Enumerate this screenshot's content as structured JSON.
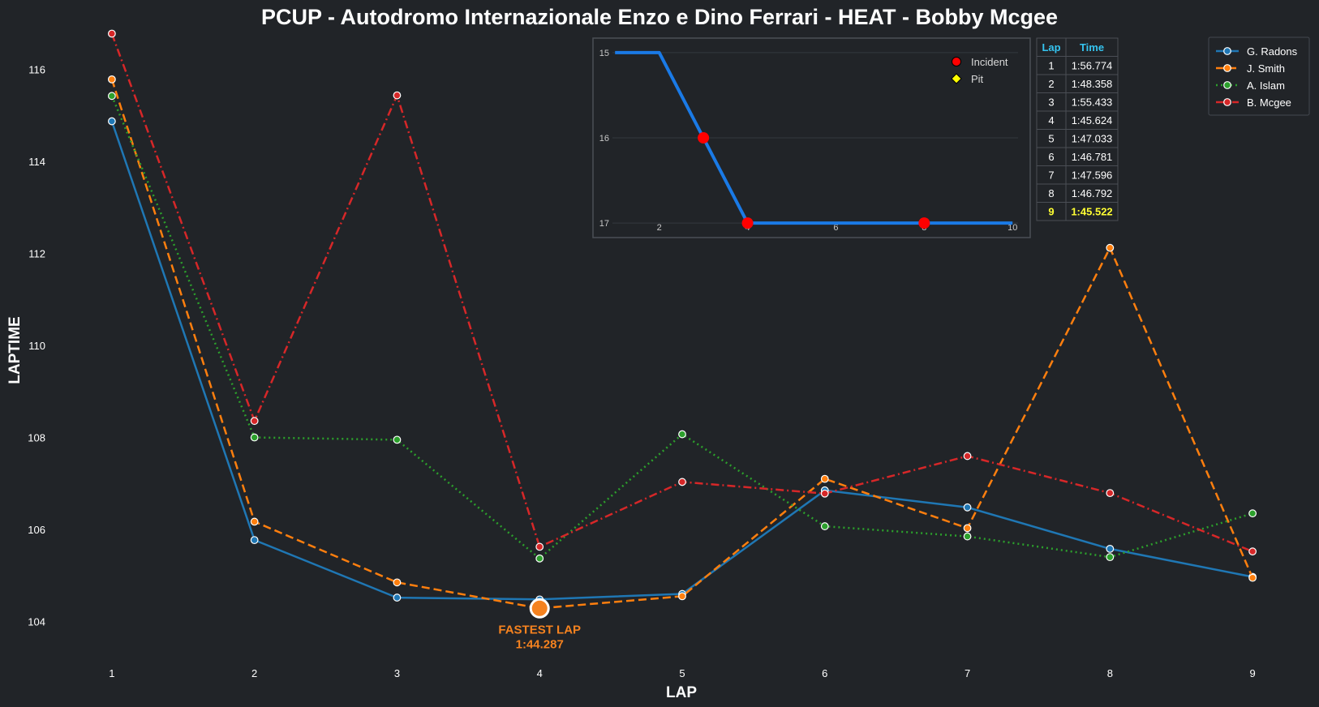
{
  "chart_data": [
    {
      "type": "line",
      "title": "PCUP - Autodromo Internazionale Enzo e Dino Ferrari - HEAT - Bobby Mcgee",
      "xlabel": "LAP",
      "ylabel": "LAPTIME",
      "x": [
        1,
        2,
        3,
        4,
        5,
        6,
        7,
        8,
        9
      ],
      "xlim": [
        0.5,
        9.5
      ],
      "ylim": [
        103.2,
        116.8
      ],
      "yticks": [
        104,
        106,
        108,
        110,
        112,
        114,
        116
      ],
      "grid": false,
      "legend_position": "top-right",
      "series": [
        {
          "name": "G. Radons",
          "color": "#1f77b4",
          "style": "solid",
          "values": [
            114.87,
            105.77,
            104.52,
            104.48,
            104.6,
            106.85,
            106.48,
            105.58,
            104.97
          ]
        },
        {
          "name": "J. Smith",
          "color": "#ff7f0e",
          "style": "dashed",
          "values": [
            115.78,
            106.17,
            104.85,
            104.287,
            104.55,
            107.1,
            106.03,
            112.12,
            104.95
          ]
        },
        {
          "name": "A. Islam",
          "color": "#2ca02c",
          "style": "dotted",
          "values": [
            115.42,
            108.0,
            107.95,
            105.37,
            108.07,
            106.07,
            105.85,
            105.4,
            106.35
          ]
        },
        {
          "name": "B. Mcgee",
          "color": "#d62728",
          "style": "dashdot",
          "values": [
            116.774,
            108.358,
            115.433,
            105.624,
            107.033,
            106.781,
            107.596,
            106.792,
            105.522
          ]
        }
      ],
      "annotation": {
        "line1": "FASTEST LAP",
        "line2": "1:44.287",
        "x": 4,
        "y": 104.287,
        "color": "#f5821f"
      }
    },
    {
      "type": "line",
      "x": [
        1,
        2,
        3,
        4,
        5,
        6,
        7,
        8,
        9,
        10
      ],
      "values": [
        15,
        15,
        16,
        17,
        17,
        17,
        17,
        17,
        17,
        17
      ],
      "xlim": [
        0.5,
        10.4
      ],
      "ylim": [
        17.17,
        14.83
      ],
      "xticks": [
        2,
        4,
        6,
        8,
        10
      ],
      "yticks": [
        15,
        16,
        17
      ],
      "y_inverted": true,
      "color": "#1a7ae6",
      "markers": [
        {
          "type": "Incident",
          "x": 3,
          "y": 16,
          "color": "#ff0000"
        },
        {
          "type": "Incident",
          "x": 4,
          "y": 17,
          "color": "#ff0000"
        },
        {
          "type": "Incident",
          "x": 8,
          "y": 17,
          "color": "#ff0000"
        }
      ],
      "legend": [
        {
          "label": "Incident",
          "color": "#ff0000",
          "shape": "circle"
        },
        {
          "label": "Pit",
          "color": "#ffff00",
          "shape": "diamond"
        }
      ]
    },
    {
      "type": "table",
      "columns": [
        "Lap",
        "Time"
      ],
      "rows": [
        [
          "1",
          "1:56.774"
        ],
        [
          "2",
          "1:48.358"
        ],
        [
          "3",
          "1:55.433"
        ],
        [
          "4",
          "1:45.624"
        ],
        [
          "5",
          "1:47.033"
        ],
        [
          "6",
          "1:46.781"
        ],
        [
          "7",
          "1:47.596"
        ],
        [
          "8",
          "1:46.792"
        ],
        [
          "9",
          "1:45.522"
        ]
      ],
      "best_row": 9,
      "header_color": "#35c4f0",
      "best_color": "#ffff33"
    }
  ]
}
